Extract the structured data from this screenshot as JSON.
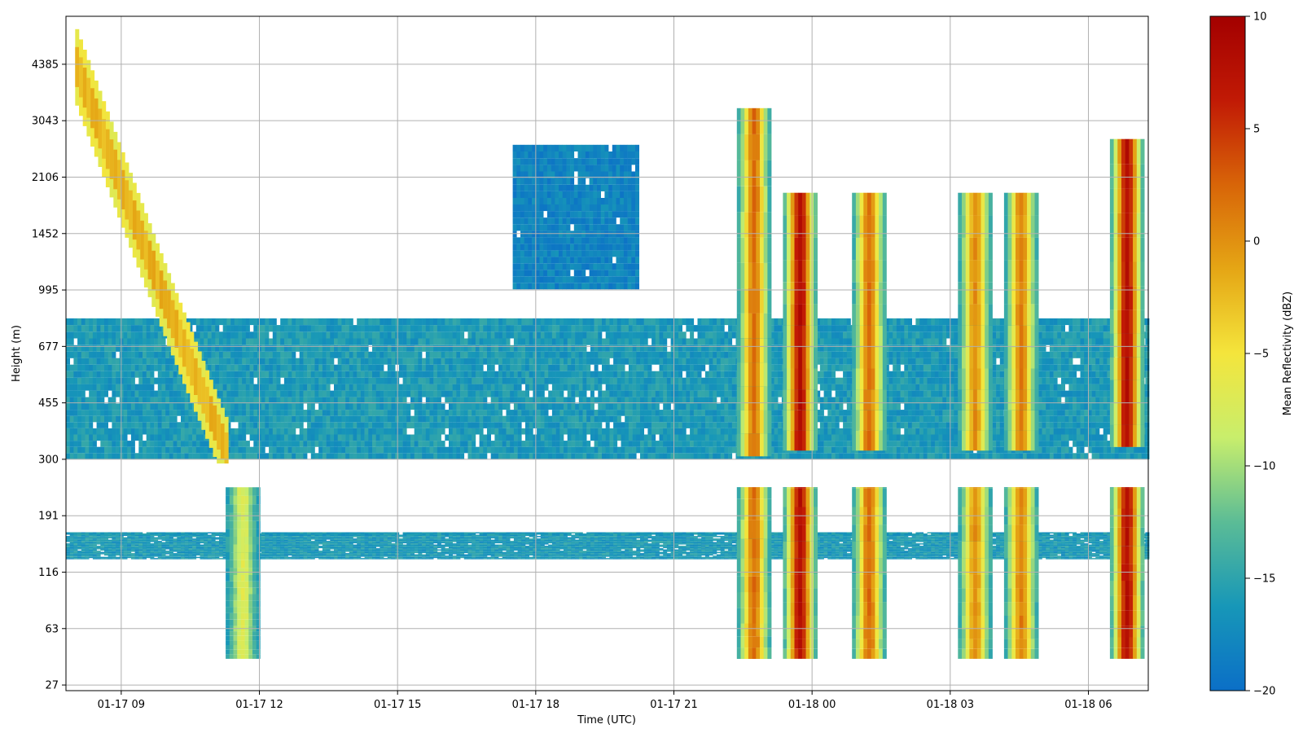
{
  "chart_data": {
    "type": "heatmap",
    "title": "",
    "xlabel": "Time (UTC)",
    "ylabel": "Height (m)",
    "colorbar_label": "Mean Reflectivity (dBZ)",
    "x_ticks": [
      "01-17 09",
      "01-17 12",
      "01-17 15",
      "01-17 18",
      "01-17 21",
      "01-18 00",
      "01-18 03",
      "01-18 06"
    ],
    "y_ticks": [
      "27",
      "63",
      "116",
      "191",
      "300",
      "455",
      "677",
      "995",
      "1452",
      "2106",
      "3043",
      "4385"
    ],
    "colorbar_ticks": [
      "10",
      "5",
      "0",
      "−5",
      "−10",
      "−15",
      "−20"
    ],
    "x_range_hours": [
      7.8,
      31.3
    ],
    "colorbar_range_dbz": [
      -20,
      10
    ],
    "colormap": [
      "#0b6fc7",
      "#1797b8",
      "#5bbc96",
      "#c8ee6c",
      "#f4e53c",
      "#e5a615",
      "#d86508",
      "#c11a05",
      "#a30000"
    ],
    "grid": true,
    "legend": "colorbar-right",
    "echo_features": [
      {
        "name": "Boundary-layer layer",
        "t_start": 7.8,
        "t_end": 31.3,
        "z_start": 300,
        "z_end": 820,
        "dbz": -16
      },
      {
        "name": "Low-level layer",
        "t_start": 7.8,
        "t_end": 31.3,
        "z_start": 130,
        "z_end": 165,
        "dbz": -16
      },
      {
        "name": "Sloping band 1",
        "t_start": 8.0,
        "t_end": 11.3,
        "z_top": 4300,
        "z_bottom": 300,
        "dbz": -3
      },
      {
        "name": "Vertical streak 12",
        "t_center": 11.6,
        "z_top": 240,
        "z_bottom": 40,
        "dbz": -7
      },
      {
        "name": "Mid-level cloud",
        "t_start": 17.5,
        "t_end": 20.2,
        "z_start": 1000,
        "z_end": 2600,
        "dbz": -18
      },
      {
        "name": "Convective core A",
        "t_center": 22.7,
        "z_top": 3300,
        "z_bottom": 40,
        "dbz": 2
      },
      {
        "name": "Convective core B",
        "t_center": 23.7,
        "z_top": 1900,
        "z_bottom": 40,
        "dbz": 8
      },
      {
        "name": "Convective core C",
        "t_center": 25.2,
        "z_top": 1900,
        "z_bottom": 40,
        "dbz": 2
      },
      {
        "name": "Convective core D",
        "t_center": 27.5,
        "z_top": 1900,
        "z_bottom": 40,
        "dbz": 0
      },
      {
        "name": "Convective core E",
        "t_center": 28.5,
        "z_top": 1900,
        "z_bottom": 40,
        "dbz": 1
      },
      {
        "name": "Convective core F",
        "t_center": 30.8,
        "z_top": 2700,
        "z_bottom": 40,
        "dbz": 8
      }
    ]
  }
}
